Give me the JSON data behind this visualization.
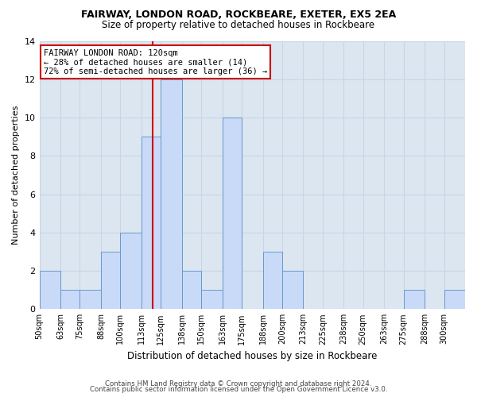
{
  "title1": "FAIRWAY, LONDON ROAD, ROCKBEARE, EXETER, EX5 2EA",
  "title2": "Size of property relative to detached houses in Rockbeare",
  "xlabel": "Distribution of detached houses by size in Rockbeare",
  "ylabel": "Number of detached properties",
  "bin_labels": [
    "50sqm",
    "63sqm",
    "75sqm",
    "88sqm",
    "100sqm",
    "113sqm",
    "125sqm",
    "138sqm",
    "150sqm",
    "163sqm",
    "175sqm",
    "188sqm",
    "200sqm",
    "213sqm",
    "225sqm",
    "238sqm",
    "250sqm",
    "263sqm",
    "275sqm",
    "288sqm",
    "300sqm"
  ],
  "bin_edges": [
    50,
    63,
    75,
    88,
    100,
    113,
    125,
    138,
    150,
    163,
    175,
    188,
    200,
    213,
    225,
    238,
    250,
    263,
    275,
    288,
    300,
    313
  ],
  "counts": [
    2,
    1,
    1,
    3,
    4,
    9,
    12,
    2,
    1,
    10,
    0,
    3,
    2,
    0,
    0,
    0,
    0,
    0,
    1,
    0,
    1
  ],
  "bar_color": "#c9daf8",
  "bar_edge_color": "#6699cc",
  "reference_line_x": 120,
  "annotation_text": "FAIRWAY LONDON ROAD: 120sqm\n← 28% of detached houses are smaller (14)\n72% of semi-detached houses are larger (36) →",
  "annotation_box_color": "#ffffff",
  "annotation_box_edge": "#cc0000",
  "ref_line_color": "#cc0000",
  "ylim": [
    0,
    14
  ],
  "yticks": [
    0,
    2,
    4,
    6,
    8,
    10,
    12,
    14
  ],
  "grid_color": "#c8d4e8",
  "background_color": "#dce6f1",
  "footer1": "Contains HM Land Registry data © Crown copyright and database right 2024.",
  "footer2": "Contains public sector information licensed under the Open Government Licence v3.0."
}
